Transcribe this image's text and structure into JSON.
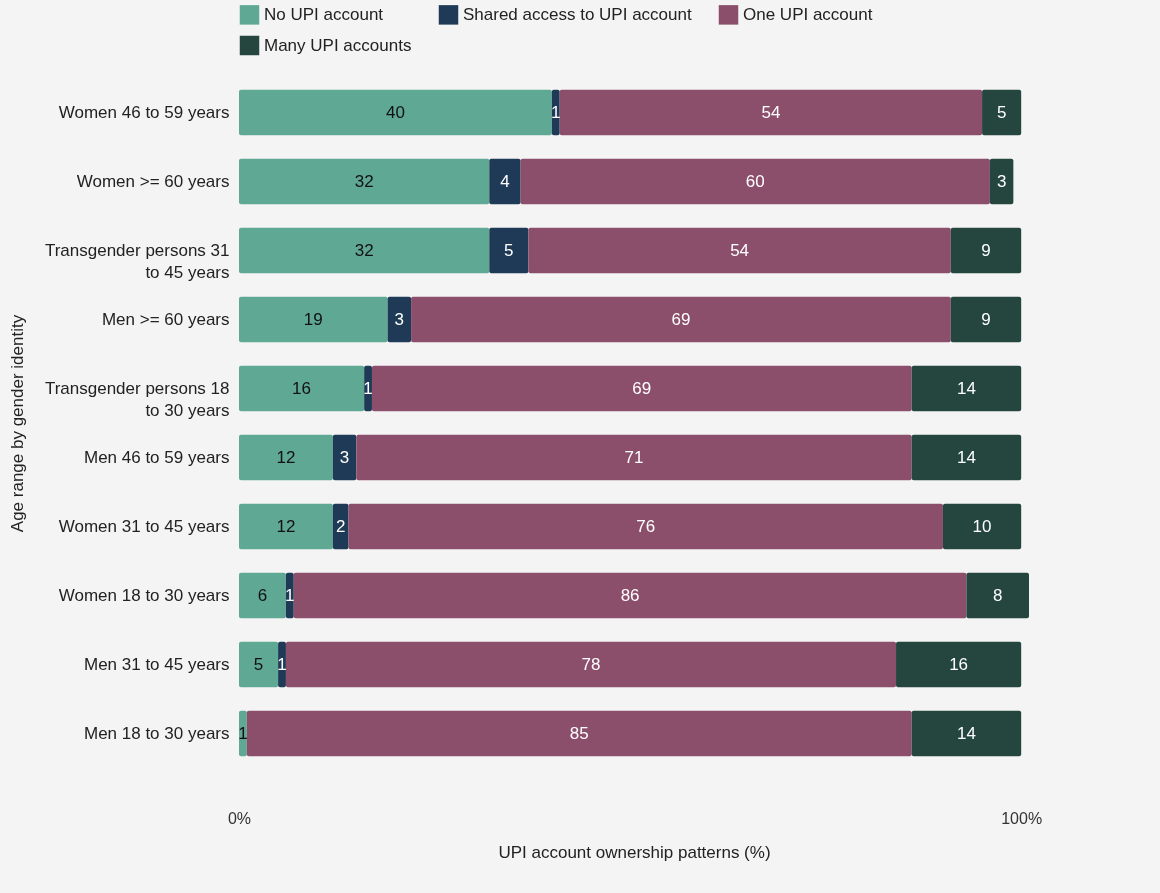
{
  "chart_data": {
    "type": "bar",
    "orientation": "horizontal",
    "stacked": true,
    "data_labels": true,
    "legend": "top",
    "grid": false,
    "xlabel": "UPI account ownership patterns (%)",
    "ylabel": "Age range by gender identity",
    "categories": [
      "Women 46 to 59 years",
      "Women >= 60 years",
      "Transgender persons 31 to 45 years",
      "Men >= 60 years",
      "Transgender persons 18 to 30 years",
      "Men 46 to 59 years",
      "Women 31 to 45 years",
      "Women 18 to 30 years",
      "Men 31 to 45 years",
      "Men 18 to 30 years"
    ],
    "xlim": [
      0,
      101
    ],
    "xticks": [
      {
        "value": 0,
        "label": "0%"
      },
      {
        "value": 100,
        "label": "100%"
      }
    ],
    "series": [
      {
        "name": "No UPI account",
        "color": "#5fa893",
        "values": [
          40,
          32,
          32,
          19,
          16,
          12,
          12,
          6,
          5,
          1
        ]
      },
      {
        "name": "Shared access to UPI account",
        "color": "#1f3a56",
        "values": [
          1,
          4,
          5,
          3,
          1,
          3,
          2,
          1,
          1,
          null
        ]
      },
      {
        "name": "One UPI account",
        "color": "#8b4f6b",
        "values": [
          54,
          60,
          54,
          69,
          69,
          71,
          76,
          86,
          78,
          85
        ]
      },
      {
        "name": "Many UPI accounts",
        "color": "#24463f",
        "values": [
          5,
          3,
          9,
          9,
          14,
          14,
          10,
          8,
          16,
          14
        ]
      }
    ]
  }
}
